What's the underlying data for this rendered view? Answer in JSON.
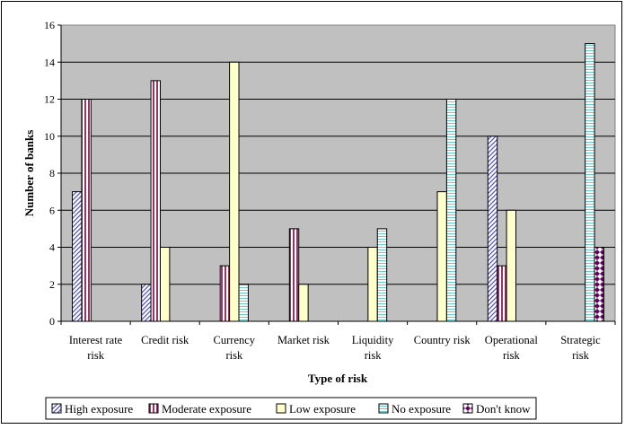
{
  "chart_data": {
    "type": "bar",
    "title": "",
    "xlabel": "Type of risk",
    "ylabel": "Number of banks",
    "ylim": [
      0,
      16
    ],
    "yticks": [
      "0",
      "2",
      "4",
      "6",
      "8",
      "10",
      "12",
      "14",
      "16"
    ],
    "grid": true,
    "legend_position": "bottom",
    "categories": [
      [
        "Interest rate",
        "risk"
      ],
      [
        "Credit risk"
      ],
      [
        "Currency",
        "risk"
      ],
      [
        "Market risk"
      ],
      [
        "Liquidity",
        "risk"
      ],
      [
        "Country risk"
      ],
      [
        "Operational",
        "risk"
      ],
      [
        "Strategic",
        "risk"
      ]
    ],
    "series": [
      {
        "name": "High exposure",
        "values": [
          7,
          2,
          0,
          0,
          0,
          0,
          10,
          0
        ]
      },
      {
        "name": "Moderate exposure",
        "values": [
          12,
          13,
          3,
          5,
          0,
          0,
          3,
          0
        ]
      },
      {
        "name": "Low exposure",
        "values": [
          0,
          4,
          14,
          2,
          4,
          7,
          6,
          0
        ]
      },
      {
        "name": "No exposure",
        "values": [
          0,
          0,
          2,
          0,
          5,
          12,
          0,
          15
        ]
      },
      {
        "name": "Don't know",
        "values": [
          0,
          0,
          0,
          0,
          0,
          0,
          0,
          4
        ]
      }
    ],
    "colors": {
      "plot_background": "#c0c0c0",
      "high_exposure": "#9999ff",
      "moderate_exposure": "#993366",
      "low_exposure": "#ffffcc",
      "no_exposure": "#ccffff",
      "dont_know": "#660066"
    }
  }
}
